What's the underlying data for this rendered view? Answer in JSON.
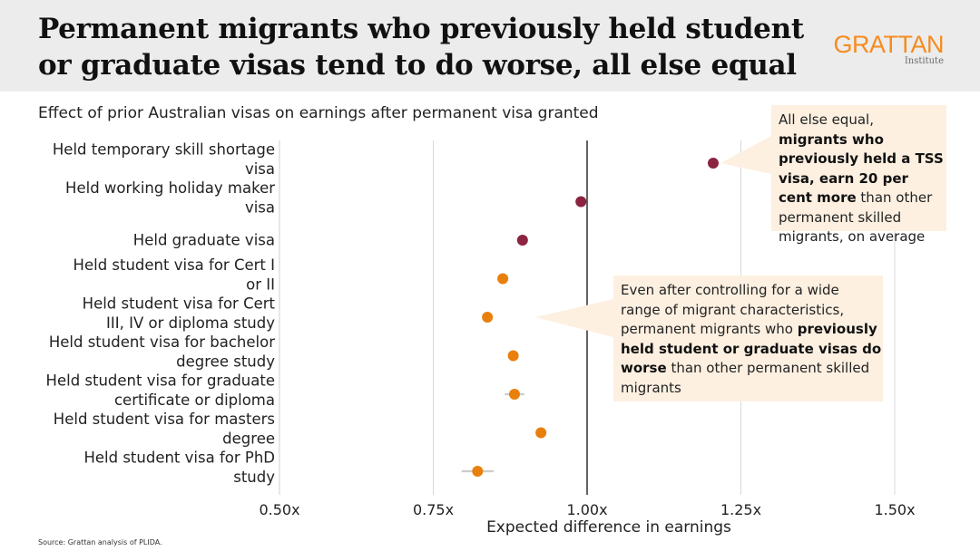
{
  "title": "Permanent migrants who previously held student or graduate visas tend to do worse, all else equal",
  "subtitle": "Effect of prior Australian visas on earnings after permanent visa granted",
  "source": "Source: Grattan analysis of PLIDA.",
  "logo": {
    "name": "GRATTAN",
    "sub": "Institute"
  },
  "colors": {
    "accent": "#f68b1f",
    "dark_point": "#8b2341",
    "orange_point": "#e8800b",
    "callout_bg": "#fdf0e1"
  },
  "annotations": [
    {
      "parts": [
        {
          "text": "All else equal, ",
          "bold": false
        },
        {
          "text": "migrants who previously held a TSS visa, earn 20 per cent more",
          "bold": true
        },
        {
          "text": " than other permanent skilled migrants, on average",
          "bold": false
        }
      ]
    },
    {
      "parts": [
        {
          "text": "Even after controlling for a wide range of migrant characteristics, permanent migrants who ",
          "bold": false
        },
        {
          "text": "previously held student or graduate visas do worse",
          "bold": true
        },
        {
          "text": " than other permanent skilled migrants",
          "bold": false
        }
      ]
    }
  ],
  "chart_data": {
    "type": "scatter",
    "orientation": "horizontal",
    "xlabel": "Expected difference in earnings",
    "xlim": [
      0.5,
      1.5
    ],
    "reference_line": 1.0,
    "xticks": [
      0.5,
      0.75,
      1.0,
      1.25,
      1.5
    ],
    "xtick_labels": [
      "0.50x",
      "0.75x",
      "1.00x",
      "1.25x",
      "1.50x"
    ],
    "categories": [
      [
        "Held temporary skill shortage",
        "visa"
      ],
      [
        "Held working holiday maker",
        "visa"
      ],
      [
        "Held graduate visa"
      ],
      [
        "Held student visa for Cert I",
        "or II"
      ],
      [
        "Held student visa for Cert",
        "III, IV or diploma study"
      ],
      [
        "Held student visa for bachelor",
        "degree study"
      ],
      [
        "Held student visa for graduate",
        "certificate or diploma"
      ],
      [
        "Held student visa for masters",
        "degree"
      ],
      [
        "Held student visa for PhD",
        "study"
      ]
    ],
    "values": [
      1.205,
      0.99,
      0.895,
      0.863,
      0.838,
      0.88,
      0.882,
      0.925,
      0.822
    ],
    "ci_low": [
      1.2,
      0.987,
      0.89,
      0.855,
      0.832,
      0.874,
      0.866,
      0.92,
      0.796
    ],
    "ci_high": [
      1.21,
      0.993,
      0.9,
      0.871,
      0.844,
      0.886,
      0.898,
      0.93,
      0.848
    ],
    "point_colors": [
      "#8b2341",
      "#8b2341",
      "#8b2341",
      "#e8800b",
      "#e8800b",
      "#e8800b",
      "#e8800b",
      "#e8800b",
      "#e8800b"
    ]
  }
}
